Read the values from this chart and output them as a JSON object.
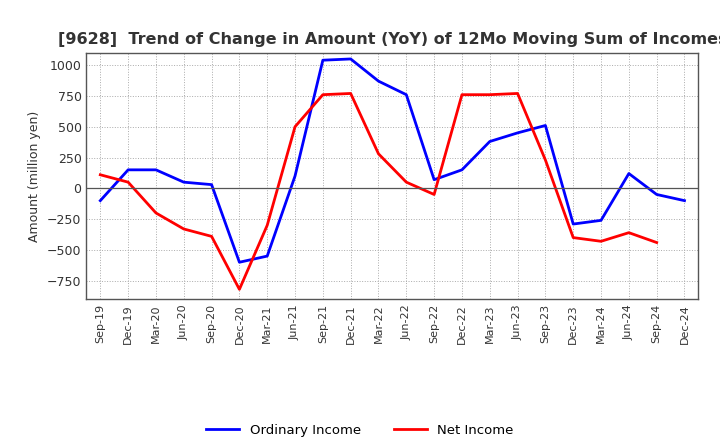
{
  "title": "[9628]  Trend of Change in Amount (YoY) of 12Mo Moving Sum of Incomes",
  "ylabel": "Amount (million yen)",
  "ylim": [
    -900,
    1100
  ],
  "yticks": [
    -750,
    -500,
    -250,
    0,
    250,
    500,
    750,
    1000
  ],
  "labels": [
    "Sep-19",
    "Dec-19",
    "Mar-20",
    "Jun-20",
    "Sep-20",
    "Dec-20",
    "Mar-21",
    "Jun-21",
    "Sep-21",
    "Dec-21",
    "Mar-22",
    "Jun-22",
    "Sep-22",
    "Dec-22",
    "Mar-23",
    "Jun-23",
    "Sep-23",
    "Dec-23",
    "Mar-24",
    "Jun-24",
    "Sep-24",
    "Dec-24"
  ],
  "ordinary_income": [
    -100,
    150,
    150,
    50,
    30,
    -600,
    -550,
    100,
    1040,
    1050,
    870,
    760,
    70,
    150,
    380,
    450,
    510,
    -290,
    -260,
    120,
    -50,
    -100
  ],
  "net_income": [
    110,
    50,
    -200,
    -330,
    -390,
    -820,
    -300,
    500,
    760,
    770,
    280,
    50,
    -50,
    760,
    760,
    770,
    230,
    -400,
    -430,
    -360,
    -440,
    null
  ],
  "ordinary_color": "#0000ff",
  "net_color": "#ff0000",
  "background_color": "#ffffff",
  "grid_color": "#aaaaaa",
  "title_color": "#333333",
  "legend_labels": [
    "Ordinary Income",
    "Net Income"
  ],
  "line_width": 2.0
}
